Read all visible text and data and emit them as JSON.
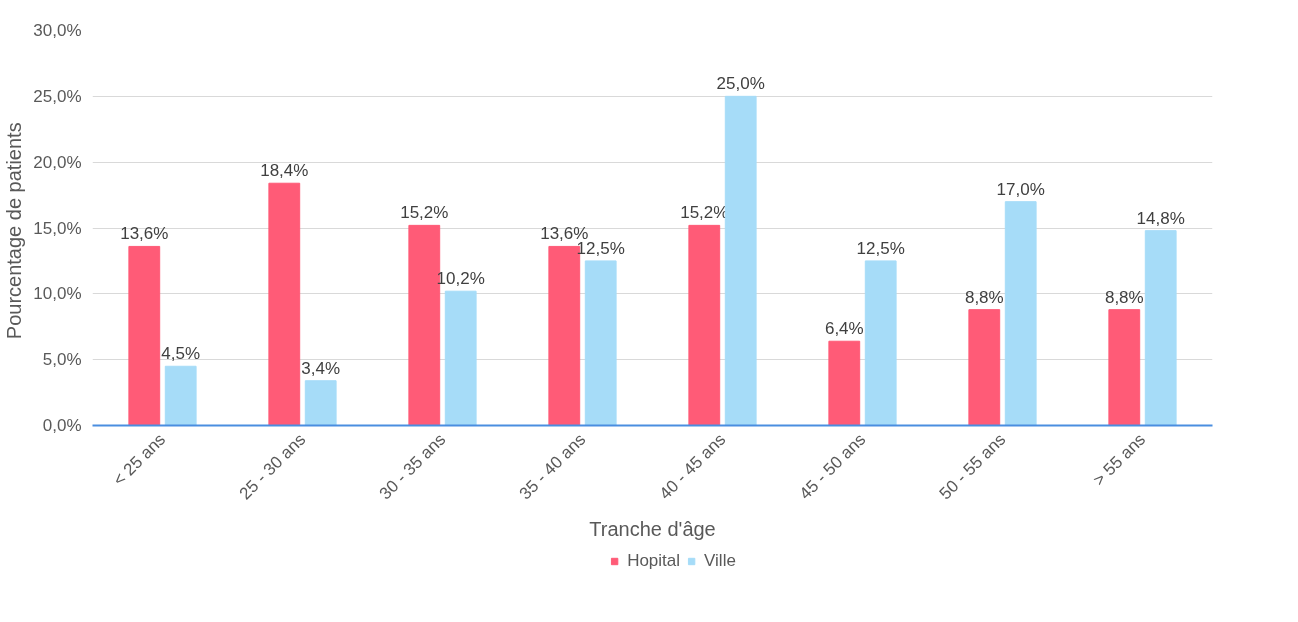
{
  "chart_data": {
    "type": "bar",
    "xlabel": "Tranche d'âge",
    "ylabel": "Pourcentage  de patients",
    "categories": [
      "< 25 ans",
      "25 - 30 ans",
      "30 - 35 ans",
      "35 - 40 ans",
      "40 - 45 ans",
      "45 - 50 ans",
      "50 - 55 ans",
      "> 55 ans"
    ],
    "series": [
      {
        "name": "Hopital",
        "color": "#ff5b77",
        "values": [
          13.6,
          18.4,
          15.2,
          13.6,
          15.2,
          6.4,
          8.8,
          8.8
        ],
        "value_labels": [
          "13,6%",
          "18,4%",
          "15,2%",
          "13,6%",
          "15,2%",
          "6,4%",
          "8,8%",
          "8,8%"
        ]
      },
      {
        "name": "Ville",
        "color": "#a6dcf8",
        "values": [
          4.5,
          3.4,
          10.2,
          12.5,
          25.0,
          12.5,
          17.0,
          14.8
        ],
        "value_labels": [
          "4,5%",
          "3,4%",
          "10,2%",
          "12,5%",
          "25,0%",
          "12,5%",
          "17,0%",
          "14,8%"
        ]
      }
    ],
    "ylim": [
      0,
      30
    ],
    "yticks": [
      {
        "value": 0,
        "label": "0,0%"
      },
      {
        "value": 5,
        "label": "5,0%"
      },
      {
        "value": 10,
        "label": "10,0%"
      },
      {
        "value": 15,
        "label": "15,0%"
      },
      {
        "value": 20,
        "label": "20,0%"
      },
      {
        "value": 25,
        "label": "25,0%"
      },
      {
        "value": 30,
        "label": "30,0%"
      }
    ],
    "grid": "y",
    "legend": "bottom"
  }
}
